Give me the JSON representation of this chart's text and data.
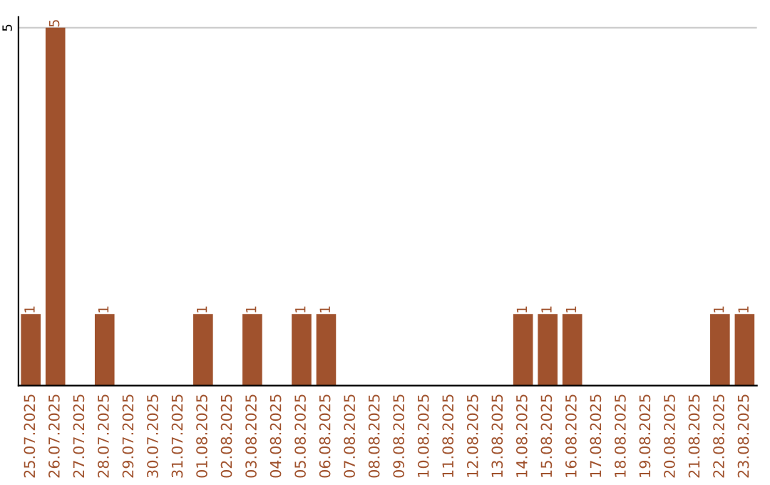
{
  "chart_data": {
    "type": "bar",
    "categories": [
      "25.07.2025",
      "26.07.2025",
      "27.07.2025",
      "28.07.2025",
      "29.07.2025",
      "30.07.2025",
      "31.07.2025",
      "01.08.2025",
      "02.08.2025",
      "03.08.2025",
      "04.08.2025",
      "05.08.2025",
      "06.08.2025",
      "07.08.2025",
      "08.08.2025",
      "09.08.2025",
      "10.08.2025",
      "11.08.2025",
      "12.08.2025",
      "13.08.2025",
      "14.08.2025",
      "15.08.2025",
      "16.08.2025",
      "17.08.2025",
      "18.08.2025",
      "19.08.2025",
      "20.08.2025",
      "21.08.2025",
      "22.08.2025",
      "23.08.2025"
    ],
    "values": [
      1,
      5,
      0,
      1,
      0,
      0,
      0,
      1,
      0,
      1,
      0,
      1,
      1,
      0,
      0,
      0,
      0,
      0,
      0,
      0,
      1,
      1,
      1,
      0,
      0,
      0,
      0,
      0,
      1,
      1
    ],
    "value_labels": [
      "1",
      "5",
      null,
      "1",
      null,
      null,
      null,
      "1",
      null,
      "1",
      null,
      "1",
      "1",
      null,
      null,
      null,
      null,
      null,
      null,
      null,
      "1",
      "1",
      "1",
      null,
      null,
      null,
      null,
      null,
      "1",
      "1"
    ],
    "color": "#a0522d",
    "ylim": [
      0,
      5.15
    ],
    "yticks": [
      5
    ],
    "grid": "y"
  }
}
